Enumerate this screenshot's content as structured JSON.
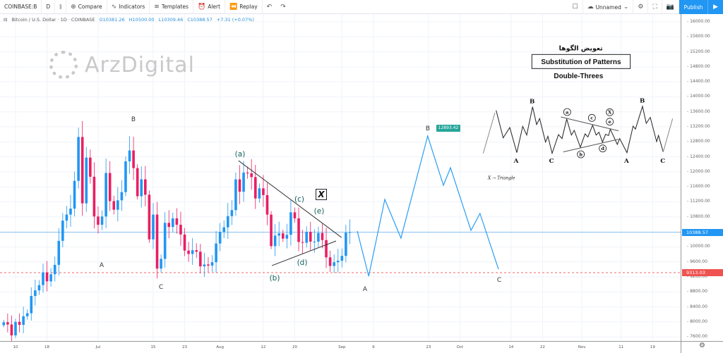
{
  "toolbar": {
    "symbol": "COINBASE:B",
    "interval": "D",
    "compare": "Compare",
    "indicators": "Indicators",
    "templates": "Templates",
    "alert": "Alert",
    "replay": "Replay",
    "layout_name": "Unnamed",
    "publish": "Publish"
  },
  "legend": {
    "title": "Bitcoin / U.S. Dollar · 1D · COINBASE",
    "open": "O10381.26",
    "high": "H10500.00",
    "low": "L10309.46",
    "close": "C10388.57",
    "change": "+7.31 (+0.07%)"
  },
  "watermark": "ArzDigital",
  "price_axis": {
    "labels": [
      "16000.00",
      "15600.00",
      "15200.00",
      "14800.00",
      "14400.00",
      "14000.00",
      "13600.00",
      "13200.00",
      "12800.00",
      "12400.00",
      "12000.00",
      "11600.00",
      "11200.00",
      "10800.00",
      "10000.00",
      "9600.00",
      "9200.00",
      "8800.00",
      "8400.00",
      "8000.00",
      "7600.00"
    ],
    "last_price": "10388.57",
    "level_price": "9313.03"
  },
  "time_axis": [
    {
      "t": "10",
      "d": 0
    },
    {
      "t": "18",
      "d": 8
    },
    {
      "t": "Jul",
      "d": 21
    },
    {
      "t": "15",
      "d": 35
    },
    {
      "t": "23",
      "d": 43
    },
    {
      "t": "Aug",
      "d": 52
    },
    {
      "t": "12",
      "d": 63
    },
    {
      "t": "20",
      "d": 71
    },
    {
      "t": "Sep",
      "d": 83
    },
    {
      "t": "9",
      "d": 91
    },
    {
      "t": "23",
      "d": 105
    },
    {
      "t": "Oct",
      "d": 113
    },
    {
      "t": "14",
      "d": 126
    },
    {
      "t": "22",
      "d": 134
    },
    {
      "t": "Nov",
      "d": 144
    },
    {
      "t": "11",
      "d": 154
    },
    {
      "t": "19",
      "d": 162
    }
  ],
  "annotations": {
    "A1": "A",
    "B1": "B",
    "C1": "C",
    "a": "(a)",
    "b": "(b)",
    "c": "(c)",
    "d": "(d)",
    "e": "(e)",
    "x": "X",
    "A2": "A",
    "B2": "B",
    "C2": "C",
    "target": "12893.42"
  },
  "inset": {
    "title_fa": "تعویض الگوها",
    "title": "Substitution of Patterns",
    "subtitle": "Double-Threes",
    "note": "X → Triangle",
    "labels": {
      "A1": "A",
      "B": "B",
      "C1": "C",
      "a": "a",
      "b": "b",
      "c": "c",
      "d": "d",
      "e": "e",
      "x": "X",
      "A2": "A",
      "B2": "B",
      "C2": "C"
    }
  },
  "colors": {
    "up": "#2196f3",
    "down": "#e91e63",
    "projection": "#2a9df4",
    "last": "#2196f3",
    "level": "#ef5350"
  },
  "chart_data": {
    "type": "candlestick",
    "start_day": -3,
    "closes": [
      7990,
      7930,
      7640,
      8000,
      7920,
      8150,
      8230,
      8690,
      8840,
      8980,
      9320,
      9080,
      9270,
      9520,
      10160,
      10700,
      10860,
      11020,
      11760,
      12930,
      11160,
      12380,
      11870,
      10810,
      10590,
      10810,
      11970,
      11220,
      10990,
      11240,
      11460,
      12280,
      12570,
      12100,
      11350,
      11800,
      11390,
      10200,
      10860,
      9420,
      9680,
      10640,
      10530,
      10760,
      10590,
      10330,
      9900,
      9810,
      9910,
      9870,
      9480,
      9530,
      9500,
      9590,
      10090,
      10400,
      10520,
      10820,
      10980,
      11800,
      11470,
      11980,
      11960,
      11860,
      11290,
      11560,
      11380,
      10860,
      10020,
      10300,
      10360,
      10220,
      10320,
      10920,
      10760,
      10130,
      10110,
      10400,
      10140,
      10140,
      10370,
      10180,
      9720,
      9490,
      9590,
      9630,
      9760,
      10380,
      10390
    ],
    "projection": [
      [
        86.9,
        10420
      ],
      [
        89.8,
        9218
      ],
      [
        93.9,
        11265
      ],
      [
        98,
        10233
      ],
      [
        104.8,
        12956
      ],
      [
        108.8,
        11641
      ],
      [
        110.6,
        12110
      ],
      [
        115.8,
        10439
      ],
      [
        118.1,
        10890
      ],
      [
        122.8,
        9405
      ]
    ],
    "triangle_upper": [
      [
        56.7,
        12298
      ],
      [
        82.9,
        10250
      ]
    ],
    "triangle_lower": [
      [
        65.2,
        9500
      ],
      [
        81.5,
        10157
      ]
    ],
    "last_price": 10388.57,
    "level": 9313.03,
    "ylim": [
      7400,
      16200
    ]
  }
}
